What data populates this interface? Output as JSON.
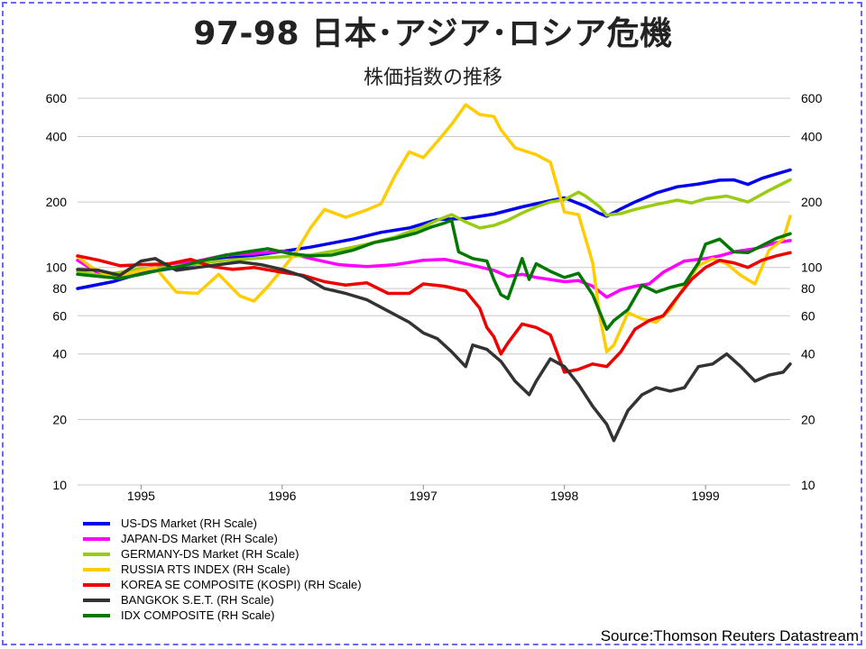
{
  "title": "97-98 日本･アジア･ロシア危機",
  "subtitle": "株価指数の推移",
  "source": "Source:Thomson Reuters Datastream",
  "chart_data": {
    "type": "line",
    "y_scale": "log",
    "ylim": [
      10,
      600
    ],
    "yticks": [
      10,
      20,
      40,
      60,
      80,
      100,
      200,
      400,
      600
    ],
    "xlim": [
      1994.55,
      1999.6
    ],
    "xticks": [
      {
        "x": 1995.0,
        "label": "1995"
      },
      {
        "x": 1996.0,
        "label": "1996"
      },
      {
        "x": 1997.0,
        "label": "1997"
      },
      {
        "x": 1998.0,
        "label": "1998"
      },
      {
        "x": 1999.0,
        "label": "1999"
      }
    ],
    "grid": true,
    "legend_position": "bottom-left",
    "series": [
      {
        "name": "US-DS Market (RH Scale)",
        "color": "#0000ee",
        "points": [
          [
            1994.55,
            80
          ],
          [
            1994.8,
            86
          ],
          [
            1995.0,
            94
          ],
          [
            1995.3,
            101
          ],
          [
            1995.6,
            110
          ],
          [
            1995.9,
            116
          ],
          [
            1996.2,
            124
          ],
          [
            1996.5,
            135
          ],
          [
            1996.7,
            145
          ],
          [
            1996.9,
            152
          ],
          [
            1997.1,
            166
          ],
          [
            1997.3,
            168
          ],
          [
            1997.5,
            176
          ],
          [
            1997.7,
            190
          ],
          [
            1997.9,
            203
          ],
          [
            1998.0,
            209
          ],
          [
            1998.15,
            191
          ],
          [
            1998.25,
            177
          ],
          [
            1998.3,
            172
          ],
          [
            1998.4,
            186
          ],
          [
            1998.5,
            200
          ],
          [
            1998.65,
            220
          ],
          [
            1998.8,
            235
          ],
          [
            1998.95,
            242
          ],
          [
            1999.1,
            252
          ],
          [
            1999.2,
            253
          ],
          [
            1999.3,
            241
          ],
          [
            1999.4,
            257
          ],
          [
            1999.5,
            269
          ],
          [
            1999.6,
            281
          ]
        ]
      },
      {
        "name": "JAPAN-DS Market (RH Scale)",
        "color": "#ff00ff",
        "points": [
          [
            1994.55,
            108
          ],
          [
            1994.7,
            94
          ],
          [
            1994.85,
            90
          ],
          [
            1995.0,
            98
          ],
          [
            1995.2,
            104
          ],
          [
            1995.4,
            107
          ],
          [
            1995.6,
            114
          ],
          [
            1995.8,
            116
          ],
          [
            1996.0,
            119
          ],
          [
            1996.2,
            110
          ],
          [
            1996.4,
            103
          ],
          [
            1996.6,
            101
          ],
          [
            1996.8,
            103
          ],
          [
            1997.0,
            108
          ],
          [
            1997.15,
            109
          ],
          [
            1997.3,
            104
          ],
          [
            1997.5,
            97
          ],
          [
            1997.6,
            91
          ],
          [
            1997.7,
            93
          ],
          [
            1997.8,
            90
          ],
          [
            1997.9,
            88
          ],
          [
            1998.0,
            86
          ],
          [
            1998.1,
            87
          ],
          [
            1998.2,
            82
          ],
          [
            1998.3,
            73
          ],
          [
            1998.4,
            79
          ],
          [
            1998.5,
            82
          ],
          [
            1998.6,
            84
          ],
          [
            1998.7,
            95
          ],
          [
            1998.85,
            107
          ],
          [
            1999.0,
            110
          ],
          [
            1999.1,
            113
          ],
          [
            1999.2,
            118
          ],
          [
            1999.35,
            122
          ],
          [
            1999.5,
            130
          ],
          [
            1999.6,
            133
          ]
        ]
      },
      {
        "name": "GERMANY-DS Market (RH Scale)",
        "color": "#99cc11",
        "points": [
          [
            1994.55,
            96
          ],
          [
            1994.7,
            92
          ],
          [
            1994.85,
            95
          ],
          [
            1995.0,
            99
          ],
          [
            1995.2,
            100
          ],
          [
            1995.4,
            104
          ],
          [
            1995.6,
            108
          ],
          [
            1995.8,
            110
          ],
          [
            1996.0,
            112
          ],
          [
            1996.2,
            114
          ],
          [
            1996.4,
            120
          ],
          [
            1996.6,
            128
          ],
          [
            1996.8,
            138
          ],
          [
            1997.0,
            154
          ],
          [
            1997.1,
            165
          ],
          [
            1997.2,
            175
          ],
          [
            1997.3,
            162
          ],
          [
            1997.4,
            152
          ],
          [
            1997.5,
            156
          ],
          [
            1997.6,
            165
          ],
          [
            1997.7,
            178
          ],
          [
            1997.8,
            190
          ],
          [
            1997.9,
            200
          ],
          [
            1998.0,
            205
          ],
          [
            1998.1,
            222
          ],
          [
            1998.15,
            213
          ],
          [
            1998.25,
            190
          ],
          [
            1998.3,
            174
          ],
          [
            1998.4,
            177
          ],
          [
            1998.5,
            185
          ],
          [
            1998.65,
            195
          ],
          [
            1998.8,
            204
          ],
          [
            1998.9,
            198
          ],
          [
            1999.0,
            207
          ],
          [
            1999.15,
            213
          ],
          [
            1999.3,
            200
          ],
          [
            1999.45,
            226
          ],
          [
            1999.6,
            253
          ]
        ]
      },
      {
        "name": "RUSSIA RTS INDEX (RH Scale)",
        "color": "#ffcc00",
        "points": [
          [
            1994.55,
            112
          ],
          [
            1994.65,
            100
          ],
          [
            1994.8,
            90
          ],
          [
            1994.95,
            95
          ],
          [
            1995.1,
            100
          ],
          [
            1995.25,
            77
          ],
          [
            1995.4,
            76
          ],
          [
            1995.55,
            93
          ],
          [
            1995.7,
            74
          ],
          [
            1995.8,
            70
          ],
          [
            1995.9,
            82
          ],
          [
            1996.0,
            98
          ],
          [
            1996.1,
            118
          ],
          [
            1996.2,
            152
          ],
          [
            1996.3,
            185
          ],
          [
            1996.45,
            170
          ],
          [
            1996.6,
            184
          ],
          [
            1996.7,
            196
          ],
          [
            1996.8,
            265
          ],
          [
            1996.9,
            340
          ],
          [
            1997.0,
            320
          ],
          [
            1997.1,
            380
          ],
          [
            1997.2,
            455
          ],
          [
            1997.3,
            560
          ],
          [
            1997.4,
            505
          ],
          [
            1997.5,
            495
          ],
          [
            1997.55,
            430
          ],
          [
            1997.65,
            355
          ],
          [
            1997.8,
            330
          ],
          [
            1997.9,
            305
          ],
          [
            1998.0,
            180
          ],
          [
            1998.1,
            175
          ],
          [
            1998.2,
            105
          ],
          [
            1998.25,
            60
          ],
          [
            1998.3,
            41
          ],
          [
            1998.35,
            44
          ],
          [
            1998.45,
            62
          ],
          [
            1998.55,
            58
          ],
          [
            1998.65,
            56
          ],
          [
            1998.75,
            64
          ],
          [
            1998.85,
            82
          ],
          [
            1998.95,
            102
          ],
          [
            1999.05,
            110
          ],
          [
            1999.15,
            104
          ],
          [
            1999.25,
            92
          ],
          [
            1999.35,
            84
          ],
          [
            1999.45,
            120
          ],
          [
            1999.55,
            135
          ],
          [
            1999.6,
            172
          ]
        ]
      },
      {
        "name": "KOREA SE COMPOSITE (KOSPI) (RH Scale)",
        "color": "#ee0000",
        "points": [
          [
            1994.55,
            113
          ],
          [
            1994.7,
            108
          ],
          [
            1994.85,
            102
          ],
          [
            1995.0,
            103
          ],
          [
            1995.2,
            104
          ],
          [
            1995.35,
            109
          ],
          [
            1995.5,
            101
          ],
          [
            1995.65,
            98
          ],
          [
            1995.8,
            100
          ],
          [
            1996.0,
            95
          ],
          [
            1996.15,
            92
          ],
          [
            1996.3,
            86
          ],
          [
            1996.45,
            83
          ],
          [
            1996.6,
            85
          ],
          [
            1996.75,
            76
          ],
          [
            1996.9,
            76
          ],
          [
            1997.0,
            84
          ],
          [
            1997.15,
            82
          ],
          [
            1997.3,
            78
          ],
          [
            1997.4,
            65
          ],
          [
            1997.45,
            53
          ],
          [
            1997.5,
            48
          ],
          [
            1997.55,
            40
          ],
          [
            1997.6,
            45
          ],
          [
            1997.7,
            55
          ],
          [
            1997.8,
            53
          ],
          [
            1997.9,
            49
          ],
          [
            1998.0,
            33
          ],
          [
            1998.1,
            34
          ],
          [
            1998.2,
            36
          ],
          [
            1998.3,
            35
          ],
          [
            1998.4,
            41
          ],
          [
            1998.5,
            52
          ],
          [
            1998.6,
            57
          ],
          [
            1998.7,
            60
          ],
          [
            1998.8,
            73
          ],
          [
            1998.9,
            88
          ],
          [
            1999.0,
            100
          ],
          [
            1999.1,
            108
          ],
          [
            1999.2,
            105
          ],
          [
            1999.3,
            100
          ],
          [
            1999.4,
            108
          ],
          [
            1999.5,
            113
          ],
          [
            1999.6,
            117
          ]
        ]
      },
      {
        "name": "BANGKOK S.E.T. (RH Scale)",
        "color": "#333333",
        "points": [
          [
            1994.55,
            98
          ],
          [
            1994.7,
            97
          ],
          [
            1994.85,
            92
          ],
          [
            1995.0,
            107
          ],
          [
            1995.1,
            110
          ],
          [
            1995.25,
            97
          ],
          [
            1995.4,
            100
          ],
          [
            1995.55,
            103
          ],
          [
            1995.7,
            106
          ],
          [
            1995.85,
            103
          ],
          [
            1996.0,
            98
          ],
          [
            1996.15,
            91
          ],
          [
            1996.3,
            80
          ],
          [
            1996.45,
            76
          ],
          [
            1996.6,
            71
          ],
          [
            1996.75,
            63
          ],
          [
            1996.9,
            56
          ],
          [
            1997.0,
            50
          ],
          [
            1997.1,
            47
          ],
          [
            1997.2,
            41
          ],
          [
            1997.3,
            35
          ],
          [
            1997.35,
            44
          ],
          [
            1997.45,
            42
          ],
          [
            1997.55,
            37
          ],
          [
            1997.65,
            30
          ],
          [
            1997.75,
            26
          ],
          [
            1997.8,
            30
          ],
          [
            1997.9,
            38
          ],
          [
            1998.0,
            35
          ],
          [
            1998.1,
            29
          ],
          [
            1998.2,
            23
          ],
          [
            1998.3,
            19
          ],
          [
            1998.35,
            16
          ],
          [
            1998.45,
            22
          ],
          [
            1998.55,
            26
          ],
          [
            1998.65,
            28
          ],
          [
            1998.75,
            27
          ],
          [
            1998.85,
            28
          ],
          [
            1998.95,
            35
          ],
          [
            1999.05,
            36
          ],
          [
            1999.15,
            40
          ],
          [
            1999.25,
            35
          ],
          [
            1999.35,
            30
          ],
          [
            1999.45,
            32
          ],
          [
            1999.55,
            33
          ],
          [
            1999.6,
            36
          ]
        ]
      },
      {
        "name": "IDX COMPOSITE (RH Scale)",
        "color": "#007700",
        "points": [
          [
            1994.55,
            93
          ],
          [
            1994.7,
            91
          ],
          [
            1994.85,
            89
          ],
          [
            1995.0,
            93
          ],
          [
            1995.15,
            98
          ],
          [
            1995.3,
            102
          ],
          [
            1995.45,
            108
          ],
          [
            1995.6,
            114
          ],
          [
            1995.75,
            118
          ],
          [
            1995.9,
            122
          ],
          [
            1996.05,
            116
          ],
          [
            1996.2,
            113
          ],
          [
            1996.35,
            114
          ],
          [
            1996.5,
            120
          ],
          [
            1996.65,
            130
          ],
          [
            1996.8,
            136
          ],
          [
            1996.95,
            144
          ],
          [
            1997.05,
            153
          ],
          [
            1997.15,
            160
          ],
          [
            1997.2,
            165
          ],
          [
            1997.25,
            118
          ],
          [
            1997.35,
            110
          ],
          [
            1997.45,
            107
          ],
          [
            1997.5,
            88
          ],
          [
            1997.55,
            75
          ],
          [
            1997.6,
            72
          ],
          [
            1997.7,
            110
          ],
          [
            1997.75,
            88
          ],
          [
            1997.8,
            104
          ],
          [
            1997.9,
            96
          ],
          [
            1998.0,
            90
          ],
          [
            1998.1,
            94
          ],
          [
            1998.2,
            75
          ],
          [
            1998.3,
            52
          ],
          [
            1998.35,
            57
          ],
          [
            1998.45,
            64
          ],
          [
            1998.55,
            83
          ],
          [
            1998.65,
            77
          ],
          [
            1998.75,
            81
          ],
          [
            1998.85,
            84
          ],
          [
            1998.95,
            105
          ],
          [
            1999.0,
            128
          ],
          [
            1999.1,
            135
          ],
          [
            1999.2,
            118
          ],
          [
            1999.3,
            117
          ],
          [
            1999.4,
            126
          ],
          [
            1999.5,
            136
          ],
          [
            1999.6,
            143
          ]
        ]
      }
    ]
  }
}
